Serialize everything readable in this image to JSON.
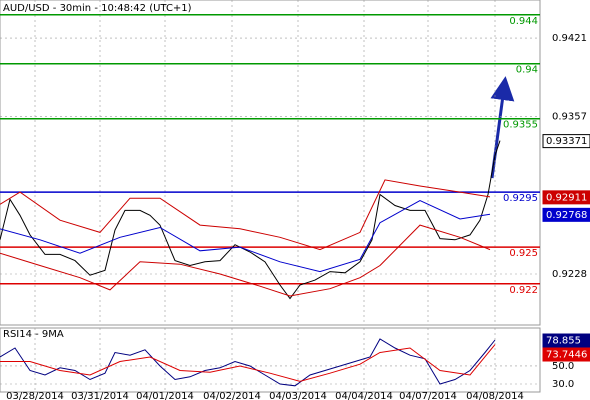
{
  "chart_data": [
    {
      "type": "line",
      "title": "AUD/USD - 30min - 10:48:42 (UTC+1)",
      "xlim": [
        0,
        540
      ],
      "ylim": [
        0.91863,
        0.94521
      ],
      "yticks": [
        0.9421,
        0.9357,
        0.9228
      ],
      "grid": true,
      "levels": [
        {
          "value": 0.944,
          "color": "#009900"
        },
        {
          "value": 0.94,
          "color": "#009900"
        },
        {
          "value": 0.9355,
          "color": "#009900"
        },
        {
          "value": 0.9295,
          "color": "#0000cc"
        },
        {
          "value": 0.925,
          "color": "#dd0000"
        },
        {
          "value": 0.922,
          "color": "#dd0000"
        }
      ],
      "series": [
        {
          "name": "price",
          "color": "#000000",
          "marker": "badge",
          "x": [
            0,
            10,
            20,
            30,
            45,
            60,
            75,
            90,
            105,
            115,
            125,
            140,
            150,
            160,
            175,
            190,
            205,
            220,
            235,
            250,
            265,
            280,
            290,
            300,
            315,
            330,
            345,
            360,
            372,
            380,
            395,
            410,
            425,
            440,
            455,
            470,
            480,
            488,
            495,
            500
          ],
          "values": [
            0.9256,
            0.9289,
            0.9276,
            0.926,
            0.9244,
            0.9244,
            0.9239,
            0.9227,
            0.9231,
            0.9264,
            0.928,
            0.928,
            0.9276,
            0.9268,
            0.9239,
            0.9235,
            0.9238,
            0.9239,
            0.9252,
            0.9246,
            0.9238,
            0.9219,
            0.9208,
            0.9219,
            0.9223,
            0.923,
            0.9229,
            0.9238,
            0.9256,
            0.9293,
            0.9284,
            0.928,
            0.928,
            0.9257,
            0.9256,
            0.926,
            0.9272,
            0.9293,
            0.9325,
            0.93371
          ]
        },
        {
          "name": "upper",
          "color": "#cc0000",
          "marker": "badge",
          "x": [
            0,
            20,
            60,
            100,
            130,
            160,
            200,
            240,
            280,
            320,
            360,
            385,
            420,
            460,
            490
          ],
          "values": [
            0.9285,
            0.9295,
            0.9272,
            0.9262,
            0.929,
            0.929,
            0.9268,
            0.9265,
            0.9258,
            0.9248,
            0.9262,
            0.9305,
            0.93,
            0.9295,
            0.92911
          ]
        },
        {
          "name": "lower",
          "color": "#cc0000",
          "x": [
            0,
            40,
            80,
            110,
            140,
            180,
            220,
            260,
            290,
            330,
            360,
            380,
            420,
            460,
            490
          ],
          "values": [
            0.9245,
            0.9235,
            0.9225,
            0.9215,
            0.9238,
            0.9236,
            0.9228,
            0.9218,
            0.921,
            0.9216,
            0.9225,
            0.9235,
            0.9268,
            0.9258,
            0.9248
          ]
        },
        {
          "name": "ma",
          "color": "#0000cc",
          "marker": "badge",
          "x": [
            0,
            40,
            80,
            120,
            160,
            200,
            240,
            280,
            320,
            360,
            380,
            420,
            460,
            490
          ],
          "values": [
            0.9265,
            0.9256,
            0.9245,
            0.9258,
            0.9266,
            0.9247,
            0.925,
            0.9238,
            0.923,
            0.924,
            0.927,
            0.9288,
            0.9273,
            0.92768
          ]
        }
      ]
    },
    {
      "type": "line",
      "title": "RSI14 - 9MA",
      "xlim": [
        0,
        540
      ],
      "ylim": [
        21.1,
        92.2
      ],
      "yticks": [
        {
          "value": 50,
          "label": "50.0"
        },
        {
          "value": 30,
          "label": "30.0"
        }
      ],
      "grid": true,
      "xticks": [
        {
          "value": 35,
          "label": "03/28/2014"
        },
        {
          "value": 100,
          "label": "03/31/2014"
        },
        {
          "value": 165,
          "label": "04/01/2014"
        },
        {
          "value": 232,
          "label": "04/02/2014"
        },
        {
          "value": 298,
          "label": "04/03/2014"
        },
        {
          "value": 364,
          "label": "04/04/2014"
        },
        {
          "value": 428,
          "label": "04/07/2014"
        },
        {
          "value": 495,
          "label": "04/08/2014"
        }
      ],
      "series": [
        {
          "name": "rsi",
          "color": "#000080",
          "marker": "badge",
          "x": [
            0,
            15,
            30,
            45,
            60,
            75,
            90,
            105,
            115,
            130,
            145,
            160,
            175,
            190,
            205,
            220,
            235,
            250,
            265,
            280,
            295,
            310,
            325,
            340,
            355,
            370,
            380,
            395,
            410,
            425,
            440,
            455,
            470,
            485,
            495
          ],
          "values": [
            60,
            70,
            45,
            40,
            48,
            45,
            35,
            42,
            65,
            62,
            68,
            50,
            35,
            38,
            45,
            48,
            55,
            50,
            40,
            30,
            28,
            40,
            45,
            50,
            55,
            60,
            80,
            70,
            62,
            58,
            30,
            35,
            45,
            65,
            78.855
          ]
        },
        {
          "name": "rsi-ma",
          "color": "#dd0000",
          "marker": "badge",
          "x": [
            0,
            30,
            60,
            90,
            120,
            150,
            180,
            210,
            240,
            270,
            300,
            330,
            360,
            380,
            410,
            440,
            470,
            495
          ],
          "values": [
            55,
            55,
            45,
            40,
            55,
            60,
            45,
            43,
            50,
            42,
            33,
            42,
            52,
            65,
            70,
            45,
            40,
            73.7446
          ]
        }
      ]
    }
  ]
}
